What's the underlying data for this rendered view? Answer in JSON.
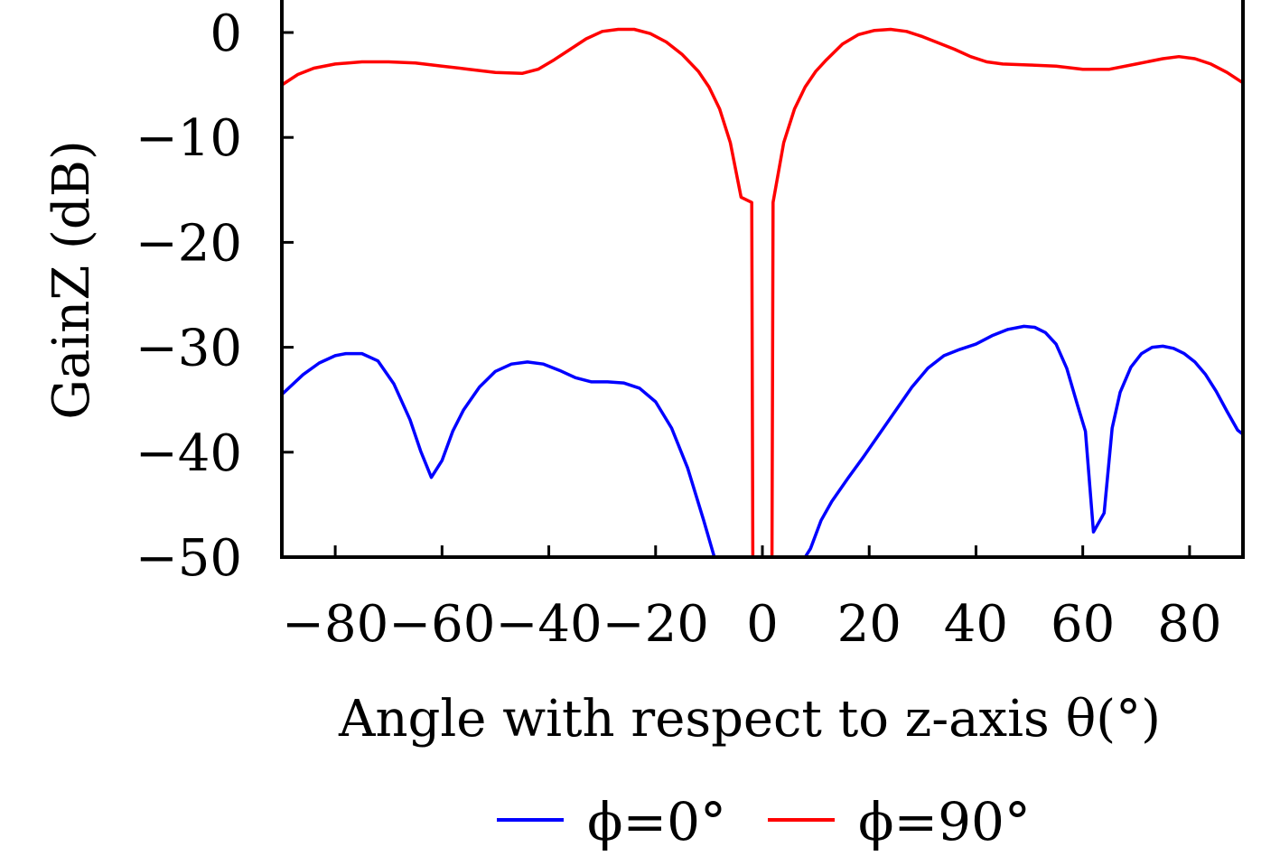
{
  "chart_data": {
    "type": "line",
    "xlabel": "Angle with respect to z-axis θ(°)",
    "ylabel": "GainZ (dB)",
    "xlim": [
      -90,
      90
    ],
    "ylim": [
      -50,
      3
    ],
    "xticks": [
      -80,
      -60,
      -40,
      -20,
      0,
      20,
      40,
      60,
      80
    ],
    "xtick_labels": [
      "−80",
      "−60",
      "−40",
      "−20",
      "0",
      "20",
      "40",
      "60",
      "80"
    ],
    "yticks": [
      0,
      -10,
      -20,
      -30,
      -40,
      -50
    ],
    "ytick_labels": [
      "0",
      "−10",
      "−20",
      "−30",
      "−40",
      "−50"
    ],
    "grid": false,
    "legend_position": "bottom",
    "series": [
      {
        "name": "ϕ=0°",
        "color": "#0000ff",
        "segments": [
          {
            "x": [
              -90,
              -86,
              -83,
              -80,
              -78,
              -75,
              -72,
              -69,
              -66,
              -64,
              -62,
              -60,
              -58,
              -56,
              -53,
              -50,
              -47,
              -44,
              -41,
              -38,
              -35,
              -32,
              -29,
              -26,
              -23,
              -20,
              -17,
              -14,
              -11,
              -9,
              -8.3
            ],
            "y": [
              -34.5,
              -32.6,
              -31.5,
              -30.8,
              -30.6,
              -30.6,
              -31.3,
              -33.5,
              -36.9,
              -39.9,
              -42.4,
              -40.8,
              -38,
              -36,
              -33.8,
              -32.3,
              -31.6,
              -31.4,
              -31.6,
              -32.2,
              -32.9,
              -33.3,
              -33.3,
              -33.4,
              -33.9,
              -35.2,
              -37.7,
              -41.5,
              -46.5,
              -50,
              -50
            ]
          },
          {
            "x": [
              8,
              9,
              11,
              13,
              16,
              19,
              22,
              25,
              28,
              31,
              34,
              37,
              40,
              43,
              46,
              49,
              51,
              53,
              55,
              57,
              59,
              60.5,
              62,
              64,
              65.5,
              67,
              69,
              71,
              73,
              75,
              77,
              79,
              81,
              83,
              85,
              87,
              89,
              90
            ],
            "y": [
              -50,
              -49.2,
              -46.5,
              -44.7,
              -42.5,
              -40.4,
              -38.2,
              -36,
              -33.8,
              -32,
              -30.8,
              -30.2,
              -29.7,
              -28.9,
              -28.3,
              -28,
              -28.1,
              -28.6,
              -29.7,
              -32,
              -35.5,
              -38,
              -47.6,
              -45.8,
              -37.7,
              -34.3,
              -31.9,
              -30.6,
              -30,
              -29.9,
              -30.1,
              -30.6,
              -31.4,
              -32.6,
              -34.2,
              -36.1,
              -37.9,
              -38.3
            ]
          }
        ]
      },
      {
        "name": "ϕ=90°",
        "color": "#ff0000",
        "segments": [
          {
            "x": [
              -90,
              -87,
              -84,
              -80,
              -75,
              -70,
              -65,
              -60,
              -55,
              -50,
              -45,
              -42,
              -39,
              -36,
              -33,
              -30,
              -27,
              -24,
              -21,
              -18,
              -15,
              -12,
              -10,
              -8,
              -6,
              -4,
              -2,
              -1.8,
              -1.7
            ],
            "y": [
              -5,
              -4,
              -3.4,
              -3,
              -2.8,
              -2.8,
              -2.9,
              -3.2,
              -3.5,
              -3.8,
              -3.9,
              -3.5,
              -2.6,
              -1.6,
              -0.6,
              0.1,
              0.3,
              0.3,
              -0.1,
              -0.9,
              -2.1,
              -3.7,
              -5.2,
              -7.3,
              -10.5,
              -15.7,
              -16.2,
              -50,
              -50
            ]
          },
          {
            "x": [
              1.7,
              1.8,
              2,
              4,
              6,
              8,
              10,
              12,
              15,
              18,
              21,
              24,
              27,
              30,
              33,
              36,
              39,
              42,
              45,
              50,
              55,
              60,
              65,
              70,
              75,
              78,
              81,
              84,
              87,
              90
            ],
            "y": [
              -50,
              -50,
              -16.2,
              -10.5,
              -7.3,
              -5.2,
              -3.7,
              -2.6,
              -1.1,
              -0.2,
              0.2,
              0.3,
              0.1,
              -0.4,
              -1,
              -1.6,
              -2.3,
              -2.8,
              -3,
              -3.1,
              -3.2,
              -3.5,
              -3.5,
              -3,
              -2.5,
              -2.3,
              -2.5,
              -3,
              -3.8,
              -4.8
            ]
          }
        ]
      }
    ],
    "legend": [
      {
        "label": "ϕ=0°",
        "color": "#0000ff"
      },
      {
        "label": "ϕ=90°",
        "color": "#ff0000"
      }
    ]
  }
}
